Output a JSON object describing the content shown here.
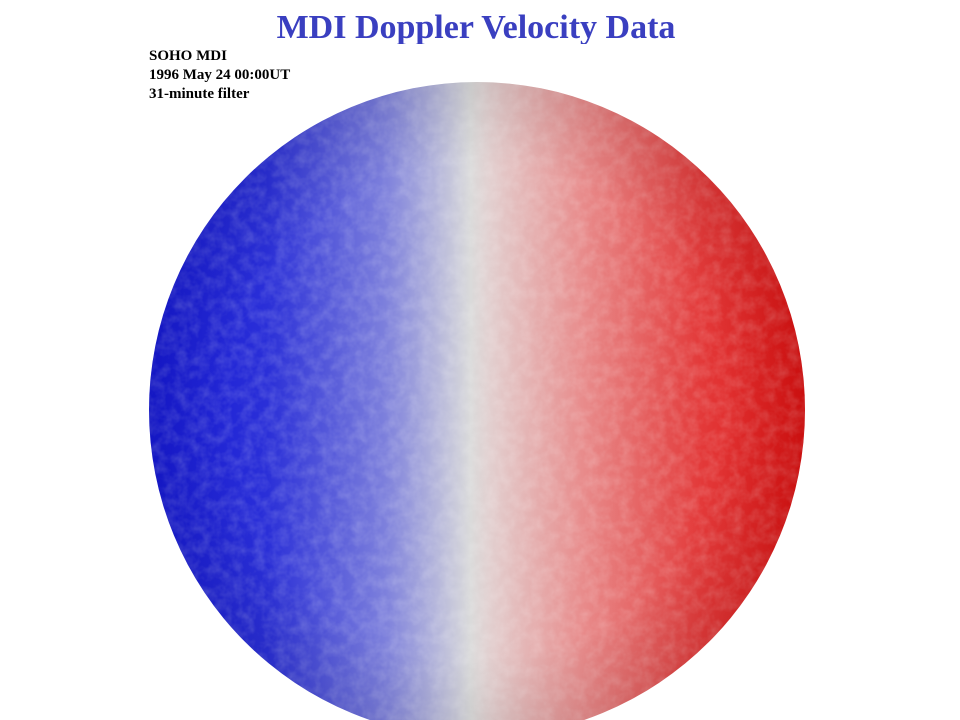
{
  "title": "MDI Doppler Velocity Data",
  "caption": {
    "line1": "SOHO MDI",
    "line2": "1996 May 24 00:00UT",
    "line3": "31-minute filter"
  },
  "colors": {
    "title": "#3a3fc0",
    "approaching": "#1f22d6",
    "neutral": "#dcdcdc",
    "receding": "#e01616"
  },
  "image": {
    "subject": "full-disk solar Doppler velocity map"
  }
}
